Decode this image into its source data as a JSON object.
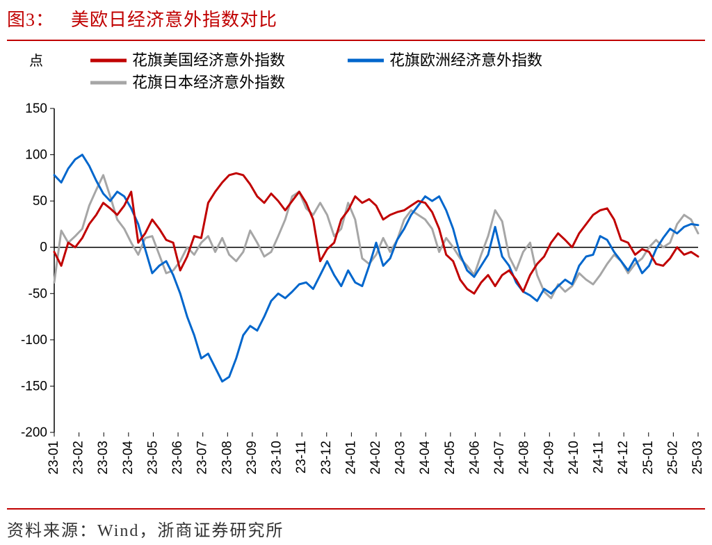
{
  "figure_label": "图3：",
  "figure_title": "美欧日经济意外指数对比",
  "source_text": "资料来源：Wind，浙商证券研究所",
  "chart": {
    "type": "line",
    "y_unit": "点",
    "ylim": [
      -200,
      150
    ],
    "ytick_step": 50,
    "yticks": [
      -200,
      -150,
      -100,
      -50,
      0,
      50,
      100,
      150
    ],
    "x_labels": [
      "23-01",
      "23-02",
      "23-03",
      "23-04",
      "23-05",
      "23-06",
      "23-07",
      "23-08",
      "23-09",
      "23-10",
      "23-11",
      "23-12",
      "24-01",
      "24-02",
      "24-03",
      "24-04",
      "24-05",
      "24-06",
      "24-07",
      "24-08",
      "24-09",
      "24-10",
      "24-11",
      "24-12",
      "25-01",
      "25-02",
      "25-03"
    ],
    "background_color": "#ffffff",
    "axis_color": "#000000",
    "line_width": 3,
    "series": [
      {
        "name": "花旗美国经济意外指数",
        "color": "#c00000",
        "values": [
          -5,
          -20,
          5,
          0,
          10,
          25,
          35,
          48,
          42,
          35,
          45,
          60,
          5,
          15,
          30,
          20,
          8,
          5,
          -25,
          -10,
          12,
          10,
          48,
          60,
          70,
          78,
          80,
          78,
          68,
          55,
          48,
          58,
          50,
          40,
          50,
          60,
          48,
          30,
          -15,
          -2,
          5,
          30,
          40,
          55,
          48,
          52,
          45,
          30,
          35,
          38,
          40,
          45,
          50,
          48,
          38,
          20,
          -8,
          -15,
          -35,
          -45,
          -50,
          -38,
          -30,
          -42,
          -30,
          -25,
          -35,
          -48,
          -30,
          -18,
          -10,
          5,
          15,
          8,
          0,
          15,
          25,
          35,
          40,
          42,
          30,
          8,
          5,
          -8,
          -2,
          -5,
          -18,
          -20,
          -12,
          0,
          -8,
          -5,
          -10
        ]
      },
      {
        "name": "花旗欧洲经济意外指数",
        "color": "#0066cc",
        "values": [
          78,
          70,
          85,
          95,
          100,
          88,
          72,
          58,
          50,
          60,
          55,
          42,
          25,
          -2,
          -28,
          -20,
          -15,
          -30,
          -50,
          -75,
          -95,
          -120,
          -115,
          -130,
          -145,
          -140,
          -120,
          -95,
          -85,
          -90,
          -75,
          -58,
          -50,
          -55,
          -48,
          -40,
          -38,
          -45,
          -30,
          -15,
          -30,
          -42,
          -25,
          -38,
          -42,
          -20,
          5,
          -20,
          -12,
          8,
          20,
          35,
          45,
          55,
          50,
          55,
          40,
          20,
          -8,
          -25,
          -32,
          -20,
          -8,
          22,
          -10,
          -20,
          -38,
          -48,
          -52,
          -58,
          -45,
          -50,
          -42,
          -35,
          -40,
          -20,
          -10,
          -8,
          12,
          8,
          -5,
          -15,
          -25,
          -12,
          -28,
          -20,
          -2,
          10,
          20,
          15,
          22,
          25,
          24
        ]
      },
      {
        "name": "花旗日本经济意外指数",
        "color": "#a6a6a6",
        "values": [
          -38,
          18,
          5,
          12,
          20,
          45,
          62,
          78,
          55,
          30,
          20,
          5,
          -8,
          10,
          12,
          -8,
          -28,
          -25,
          -15,
          0,
          -8,
          5,
          12,
          -5,
          10,
          -8,
          -15,
          -5,
          18,
          5,
          -10,
          -5,
          12,
          30,
          55,
          60,
          42,
          35,
          48,
          35,
          12,
          20,
          48,
          30,
          -12,
          -18,
          -8,
          10,
          -5,
          8,
          30,
          40,
          35,
          30,
          20,
          -5,
          10,
          0,
          -12,
          -20,
          -30,
          -8,
          12,
          40,
          28,
          -10,
          -25,
          -5,
          5,
          -30,
          -48,
          -55,
          -40,
          -48,
          -42,
          -28,
          -35,
          -40,
          -30,
          -18,
          -8,
          -15,
          -28,
          -18,
          -12,
          0,
          8,
          0,
          5,
          25,
          35,
          30,
          15
        ]
      }
    ],
    "legend": {
      "position": "top",
      "items": [
        {
          "label": "花旗美国经济意外指数",
          "color": "#c00000"
        },
        {
          "label": "花旗欧洲经济意外指数",
          "color": "#0066cc"
        },
        {
          "label": "花旗日本经济意外指数",
          "color": "#a6a6a6"
        }
      ]
    }
  }
}
